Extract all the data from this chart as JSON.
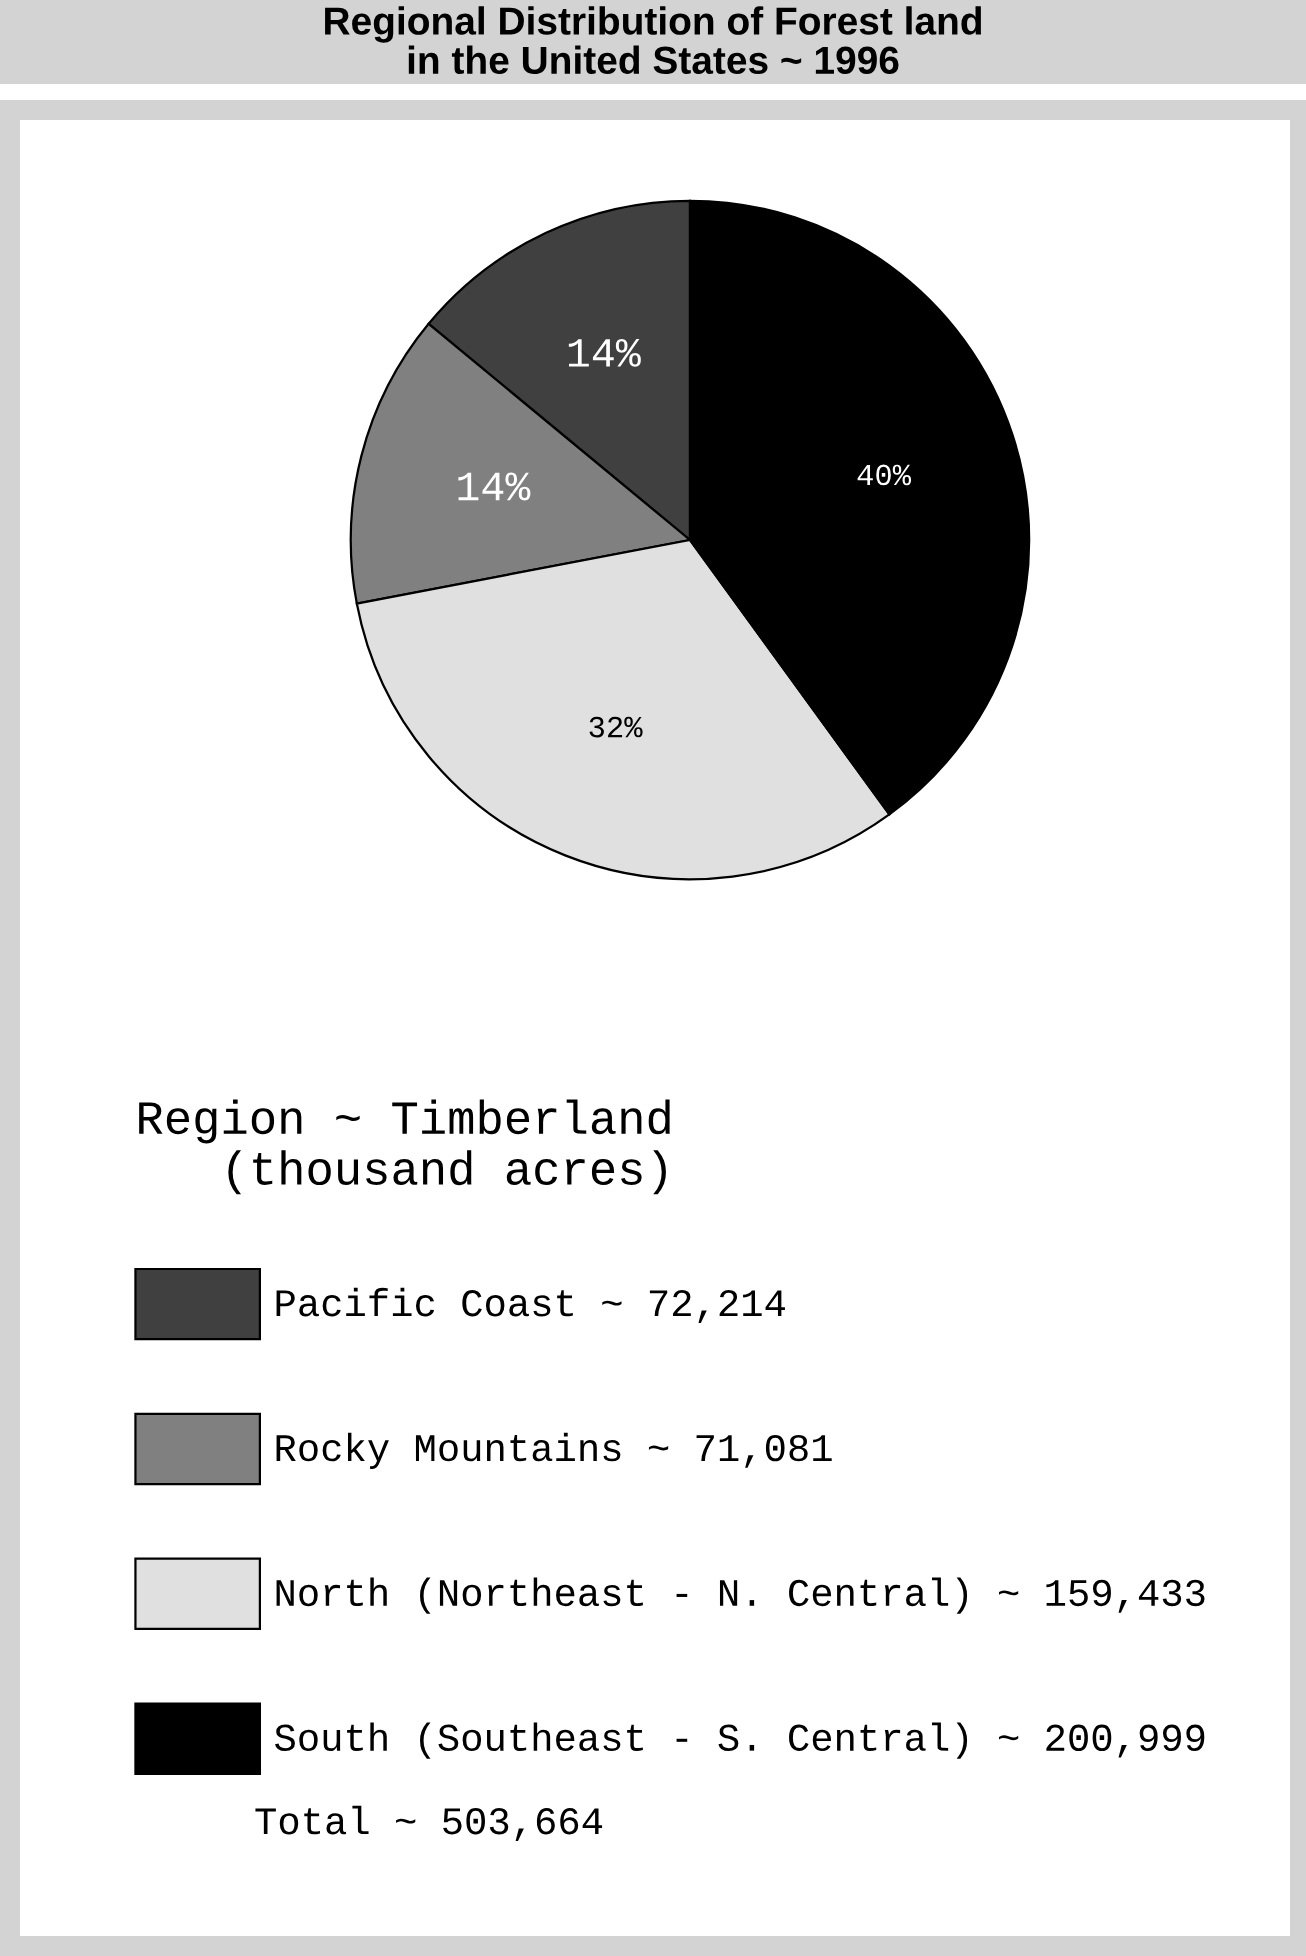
{
  "chart_data": {
    "type": "pie",
    "title": "Regional Distribution of Forest land\nin the United States ~ 1996",
    "legend_title": "Region ~ Timberland\n(thousand acres)",
    "categories": [
      "Pacific Coast ~ 72,214",
      "Rocky Mountains ~ 71,081",
      "North (Northeast - N. Central) ~ 159,433",
      "South (Southeast - S. Central) ~ 200,999"
    ],
    "values": [
      14,
      14,
      32,
      40
    ],
    "colors": [
      "#404040",
      "#808080",
      "#e0e0e0",
      "#000000"
    ],
    "value_labels": [
      "14%",
      "14%",
      "32%",
      "40%"
    ],
    "legend": "bottom",
    "annotations": [
      "Total ~ 503,664"
    ]
  }
}
